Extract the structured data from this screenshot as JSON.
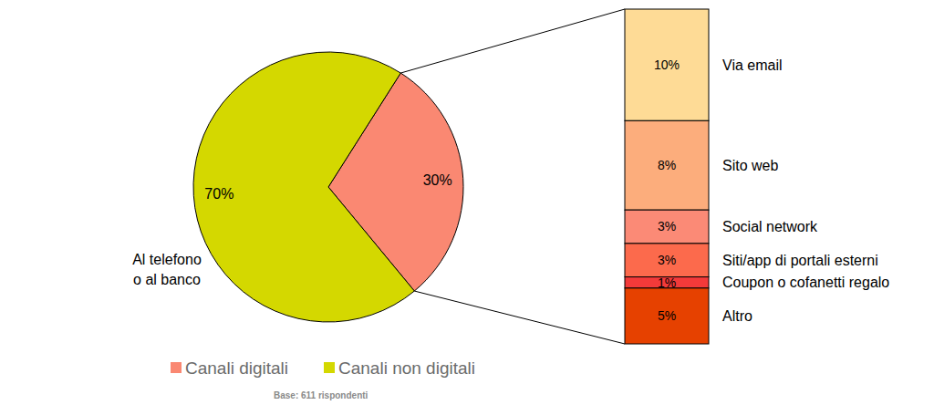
{
  "chart_data": [
    {
      "type": "pie",
      "categories": [
        "Canali digitali",
        "Canali non digitali"
      ],
      "values": [
        30,
        70
      ],
      "value_labels": [
        "30%",
        "70%"
      ],
      "colors": [
        "#fa8872",
        "#d4d800"
      ],
      "data_labels": true,
      "legend": "bottom",
      "annotations": [
        "Al telefono\no al banco"
      ],
      "caption": "Base: 611 rispondenti"
    },
    {
      "type": "bar",
      "stacked": true,
      "categories": [
        "Via email",
        "Sito web",
        "Social network",
        "Siti/app di portali esterni",
        "Coupon o cofanetti regalo",
        "Altro"
      ],
      "values": [
        10,
        8,
        3,
        3,
        1,
        5
      ],
      "value_labels": [
        "10%",
        "8%",
        "3%",
        "3%",
        "1%",
        "5%"
      ],
      "colors": [
        "#fedb96",
        "#fcad7c",
        "#fb8a76",
        "#fc6a4c",
        "#f33a3a",
        "#e64100"
      ],
      "data_labels": true
    }
  ]
}
